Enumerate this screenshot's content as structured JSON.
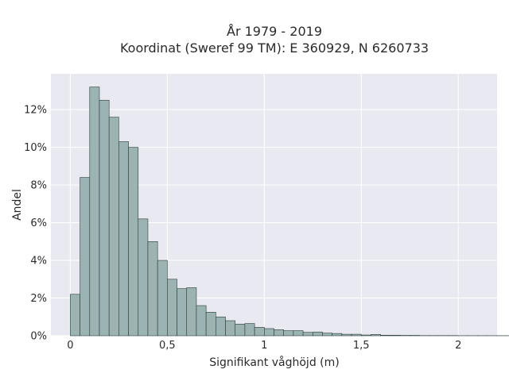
{
  "chart_data": {
    "type": "bar",
    "title_line1": "År 1979 - 2019",
    "title_line2": "Koordinat (Sweref 99 TM): E 360929, N 6260733",
    "xlabel": "Signifikant våghöjd (m)",
    "ylabel": "Andel",
    "x_ticks": [
      {
        "value": 0,
        "label": "0"
      },
      {
        "value": 0.5,
        "label": "0,5"
      },
      {
        "value": 1,
        "label": "1"
      },
      {
        "value": 1.5,
        "label": "1,5"
      },
      {
        "value": 2,
        "label": "2"
      }
    ],
    "y_ticks": [
      {
        "value": 0,
        "label": "0%"
      },
      {
        "value": 2,
        "label": "2%"
      },
      {
        "value": 4,
        "label": "4%"
      },
      {
        "value": 6,
        "label": "6%"
      },
      {
        "value": 8,
        "label": "8%"
      },
      {
        "value": 10,
        "label": "10%"
      },
      {
        "value": 12,
        "label": "12%"
      }
    ],
    "xlim": [
      -0.1,
      2.2
    ],
    "ylim": [
      0,
      13.9
    ],
    "bin_width": 0.05,
    "bin_start": 0,
    "values": [
      2.2,
      8.4,
      13.2,
      12.5,
      11.6,
      10.3,
      10.0,
      6.2,
      5.0,
      4.0,
      3.0,
      2.5,
      2.55,
      1.6,
      1.25,
      1.0,
      0.8,
      0.62,
      0.65,
      0.45,
      0.38,
      0.32,
      0.27,
      0.27,
      0.18,
      0.2,
      0.14,
      0.12,
      0.08,
      0.08,
      0.04,
      0.07,
      0.03,
      0.03,
      0.02,
      0.02,
      0.01,
      0.01,
      0.01,
      0.01,
      0.005,
      0.005,
      0.005,
      0.005,
      0.005,
      0.003
    ],
    "bar_color": "#9cb3b3",
    "bar_edge_color": "#2b3b3b",
    "plot_background": "#e9e9f1",
    "grid": true
  }
}
